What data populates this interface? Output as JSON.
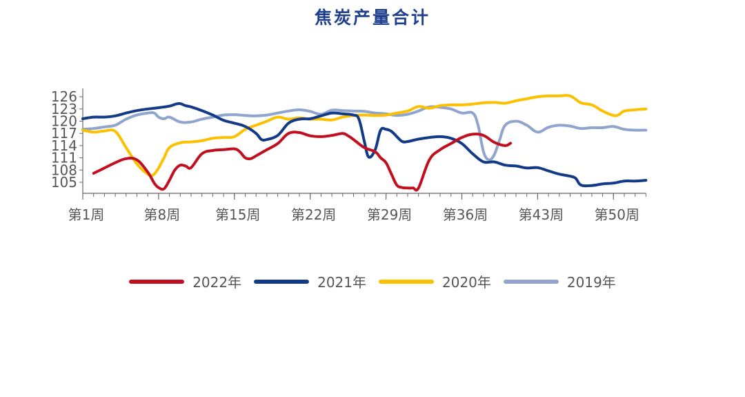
{
  "chart_data": {
    "type": "line",
    "title": "焦炭产量合计",
    "xlabel": "",
    "ylabel": "",
    "yticks": [
      105,
      108,
      111,
      114,
      117,
      120,
      123,
      126
    ],
    "ylim": [
      102,
      128
    ],
    "xlim": [
      1,
      53
    ],
    "xticks": [
      {
        "week": 1,
        "label": "第1周"
      },
      {
        "week": 8,
        "label": "第8周"
      },
      {
        "week": 15,
        "label": "第15周"
      },
      {
        "week": 22,
        "label": "第22周"
      },
      {
        "week": 29,
        "label": "第29周"
      },
      {
        "week": 36,
        "label": "第36周"
      },
      {
        "week": 43,
        "label": "第43周"
      },
      {
        "week": 50,
        "label": "第50周"
      }
    ],
    "legend_position": "bottom",
    "series": [
      {
        "name": "2022年",
        "color": "#c0101f",
        "x": [
          2,
          3,
          4,
          5,
          6,
          7,
          7.6,
          8,
          8.5,
          9,
          9.5,
          10,
          10.5,
          11,
          12,
          13,
          14,
          15,
          15.5,
          16,
          16.5,
          17,
          18,
          19,
          20,
          21,
          22,
          23,
          24,
          25,
          25.5,
          26,
          27,
          28,
          28.5,
          29,
          29.5,
          30,
          30.5,
          31,
          31.5,
          32,
          33,
          34,
          35,
          36,
          37,
          38,
          39,
          40,
          40.5
        ],
        "y": [
          107.2,
          108.5,
          109.8,
          110.8,
          110.5,
          107.5,
          104.8,
          103.7,
          103.4,
          105.5,
          108.0,
          109.2,
          109.0,
          108.6,
          112.0,
          112.8,
          113.0,
          113.2,
          112.5,
          111.0,
          110.8,
          111.5,
          113.0,
          114.5,
          117.0,
          117.2,
          116.4,
          116.2,
          116.5,
          117.0,
          116.4,
          115.5,
          113.5,
          112.5,
          111.0,
          109.8,
          107.0,
          104.3,
          103.7,
          103.6,
          103.6,
          103.6,
          110.5,
          113.0,
          114.5,
          116.0,
          116.8,
          116.5,
          114.8,
          114.0,
          114.6
        ]
      },
      {
        "name": "2021年",
        "color": "#123a86",
        "x": [
          1,
          2,
          3,
          4,
          5,
          6,
          7,
          8,
          9,
          9.6,
          10,
          10.5,
          11,
          12,
          13,
          14,
          15,
          16,
          17,
          17.5,
          18,
          19,
          20,
          21,
          22,
          23,
          24,
          25,
          26,
          26.5,
          27,
          27.4,
          28,
          28.5,
          29,
          29.5,
          30,
          30.5,
          31,
          32,
          33,
          34,
          35,
          36,
          37,
          38,
          39,
          40,
          41,
          42,
          43,
          44,
          45,
          46,
          46.5,
          47,
          48,
          49,
          50,
          51,
          52,
          53
        ],
        "y": [
          120.6,
          121.0,
          121.0,
          121.3,
          122.0,
          122.6,
          123.0,
          123.3,
          123.7,
          124.2,
          124.3,
          123.8,
          123.5,
          122.6,
          121.5,
          120.2,
          119.5,
          118.7,
          117.0,
          115.5,
          115.5,
          116.5,
          119.5,
          120.5,
          120.6,
          121.3,
          122.0,
          121.8,
          121.5,
          120.5,
          115.0,
          111.2,
          113.0,
          117.8,
          118.0,
          117.5,
          116.2,
          115.0,
          115.0,
          115.6,
          116.0,
          116.2,
          115.8,
          114.5,
          112.0,
          110.0,
          110.0,
          109.2,
          109.0,
          108.5,
          108.6,
          107.8,
          107.0,
          106.5,
          106.0,
          104.3,
          104.2,
          104.6,
          104.8,
          105.3,
          105.3,
          105.5
        ]
      },
      {
        "name": "2020年",
        "color": "#fbc100",
        "x": [
          1,
          2,
          3,
          4,
          5,
          6,
          7,
          7.5,
          8,
          8.5,
          9,
          10,
          11,
          12,
          13,
          14,
          15,
          16,
          17,
          18,
          19,
          20,
          21,
          22,
          23,
          24,
          25,
          26,
          27,
          28,
          29,
          30,
          31,
          32,
          33,
          34,
          35,
          36,
          37,
          38,
          39,
          40,
          41,
          42,
          43,
          44,
          45,
          46,
          47,
          48,
          49,
          50,
          50.5,
          51,
          52,
          53
        ],
        "y": [
          117.8,
          117.3,
          117.6,
          117.5,
          113.5,
          109.5,
          107.0,
          106.8,
          108.5,
          111.0,
          113.5,
          114.7,
          114.9,
          115.2,
          115.8,
          116.0,
          116.2,
          118.0,
          119.0,
          120.0,
          121.0,
          120.5,
          120.8,
          120.5,
          120.5,
          120.3,
          121.0,
          121.4,
          121.5,
          121.4,
          121.5,
          122.0,
          122.5,
          123.6,
          123.2,
          123.8,
          124.0,
          124.0,
          124.2,
          124.5,
          124.6,
          124.4,
          125.0,
          125.5,
          126.0,
          126.2,
          126.2,
          126.2,
          124.5,
          124.0,
          122.5,
          121.4,
          121.6,
          122.5,
          122.8,
          123.0
        ]
      },
      {
        "name": "2019年",
        "color": "#8fa5cd",
        "x": [
          1,
          2,
          3,
          4,
          5,
          6,
          7,
          7.6,
          8,
          8.5,
          9,
          10,
          11,
          12,
          13,
          14,
          15,
          16,
          17,
          18,
          19,
          20,
          21,
          22,
          23,
          24,
          25,
          26,
          27,
          28,
          29,
          30,
          31,
          32,
          33,
          34,
          35,
          36,
          37,
          37.5,
          38,
          38.5,
          39,
          39.5,
          40,
          41,
          42,
          43,
          44,
          45,
          46,
          47,
          48,
          49,
          50,
          51,
          52,
          53
        ],
        "y": [
          118.0,
          118.2,
          118.6,
          119.0,
          120.5,
          121.5,
          122.0,
          122.0,
          121.0,
          120.6,
          121.0,
          119.8,
          119.8,
          120.5,
          121.0,
          121.5,
          121.6,
          121.4,
          121.3,
          121.5,
          122.0,
          122.5,
          122.8,
          122.4,
          121.7,
          122.7,
          122.6,
          122.5,
          122.4,
          122.0,
          121.8,
          121.4,
          121.7,
          122.5,
          123.5,
          123.4,
          123.0,
          122.0,
          122.0,
          119.0,
          112.5,
          110.5,
          111.8,
          115.5,
          119.0,
          120.0,
          119.0,
          117.3,
          118.5,
          119.0,
          118.8,
          118.2,
          118.4,
          118.4,
          118.7,
          118.0,
          117.8,
          117.8
        ]
      }
    ]
  }
}
